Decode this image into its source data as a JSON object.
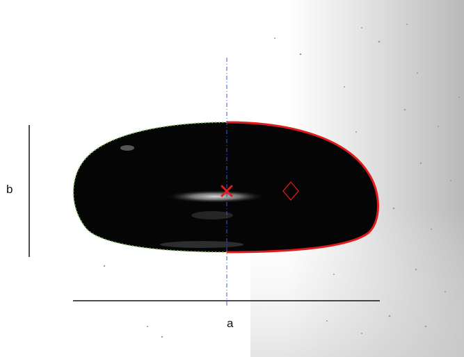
{
  "labels": {
    "width_label": "a",
    "height_label": "b"
  },
  "colors": {
    "droplet_body": "#050505",
    "fitted_contour": "#e01b1b",
    "edge_points": "#7dc94a",
    "center_marker": "#e01b1b",
    "centroid_marker": "#e01b1b",
    "symmetry_axis": "#3b5bd6",
    "dimension_lines": "#111111",
    "background_light": "#ffffff",
    "background_gradient": "#b9b9b9"
  },
  "icons": {
    "center_marker": "x-mark-icon",
    "centroid_marker": "diamond-icon"
  }
}
